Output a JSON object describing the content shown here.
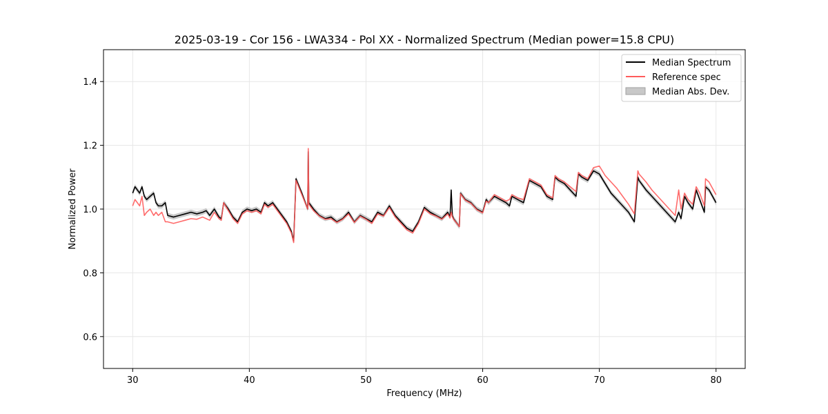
{
  "chart_data": {
    "type": "line",
    "title": "2025-03-19 - Cor 156 - LWA334 - Pol XX - Normalized Spectrum (Median power=15.8 CPU)",
    "xlabel": "Frequency (MHz)",
    "ylabel": "Normalized Power",
    "xlim": [
      27.5,
      82.5
    ],
    "ylim": [
      0.5,
      1.5
    ],
    "xticks": [
      30,
      40,
      50,
      60,
      70,
      80
    ],
    "yticks": [
      0.6,
      0.8,
      1.0,
      1.2,
      1.4
    ],
    "xtick_labels": [
      "30",
      "40",
      "50",
      "60",
      "70",
      "80"
    ],
    "ytick_labels": [
      "0.6",
      "0.8",
      "1.0",
      "1.2",
      "1.4"
    ],
    "grid": true,
    "legend_position": "top-right",
    "legend": [
      "Median Spectrum",
      "Reference spec",
      "Median Abs. Dev."
    ],
    "mad": 0.008,
    "series": [
      {
        "name": "Median Spectrum",
        "color": "#000000",
        "x": [
          30.0,
          30.2,
          30.4,
          30.6,
          30.8,
          31.0,
          31.2,
          31.5,
          31.8,
          32.0,
          32.2,
          32.5,
          32.8,
          33.0,
          33.5,
          34.0,
          34.5,
          35.0,
          35.5,
          36.0,
          36.3,
          36.6,
          37.0,
          37.4,
          37.6,
          37.8,
          38.2,
          38.6,
          39.0,
          39.4,
          39.8,
          40.2,
          40.6,
          41.0,
          41.3,
          41.6,
          42.0,
          42.4,
          42.8,
          43.2,
          43.6,
          43.8,
          44.0,
          44.5,
          45.0,
          45.05,
          45.1,
          45.5,
          46.0,
          46.5,
          47.0,
          47.5,
          48.0,
          48.5,
          49.0,
          49.5,
          50.0,
          50.5,
          51.0,
          51.5,
          52.0,
          52.5,
          53.0,
          53.5,
          54.0,
          54.5,
          55.0,
          55.5,
          56.0,
          56.5,
          57.0,
          57.2,
          57.3,
          57.4,
          57.5,
          58.0,
          58.1,
          58.5,
          59.0,
          59.5,
          60.0,
          60.3,
          60.5,
          61.0,
          61.5,
          62.0,
          62.3,
          62.5,
          63.0,
          63.5,
          64.0,
          64.5,
          65.0,
          65.5,
          66.0,
          66.2,
          66.5,
          67.0,
          67.5,
          68.0,
          68.2,
          68.5,
          69.0,
          69.5,
          70.0,
          70.5,
          71.0,
          71.5,
          72.0,
          72.5,
          73.0,
          73.3,
          73.4,
          74.0,
          74.5,
          75.0,
          75.5,
          76.0,
          76.5,
          76.8,
          77.0,
          77.3,
          77.6,
          78.0,
          78.3,
          78.6,
          79.0,
          79.1,
          79.4,
          79.7,
          80.0
        ],
        "values": [
          1.05,
          1.07,
          1.06,
          1.05,
          1.07,
          1.04,
          1.03,
          1.04,
          1.05,
          1.02,
          1.01,
          1.01,
          1.02,
          0.98,
          0.975,
          0.98,
          0.985,
          0.99,
          0.985,
          0.99,
          0.995,
          0.98,
          1.0,
          0.975,
          0.97,
          1.02,
          1.0,
          0.975,
          0.96,
          0.99,
          1.0,
          0.995,
          1.0,
          0.99,
          1.02,
          1.01,
          1.02,
          1.0,
          0.98,
          0.96,
          0.93,
          0.9,
          1.095,
          1.05,
          1.0,
          1.18,
          1.02,
          1.0,
          0.98,
          0.97,
          0.975,
          0.96,
          0.97,
          0.99,
          0.96,
          0.98,
          0.97,
          0.96,
          0.99,
          0.98,
          1.01,
          0.98,
          0.96,
          0.94,
          0.93,
          0.96,
          1.005,
          0.99,
          0.98,
          0.97,
          0.99,
          0.975,
          1.06,
          0.98,
          0.97,
          0.945,
          1.05,
          1.03,
          1.02,
          1.0,
          0.99,
          1.03,
          1.02,
          1.04,
          1.03,
          1.02,
          1.01,
          1.04,
          1.03,
          1.02,
          1.09,
          1.08,
          1.07,
          1.04,
          1.03,
          1.1,
          1.09,
          1.08,
          1.06,
          1.04,
          1.11,
          1.1,
          1.09,
          1.12,
          1.11,
          1.08,
          1.05,
          1.03,
          1.01,
          0.99,
          0.96,
          1.1,
          1.09,
          1.06,
          1.04,
          1.02,
          1.0,
          0.98,
          0.96,
          0.99,
          0.97,
          1.04,
          1.02,
          1.0,
          1.06,
          1.03,
          0.99,
          1.07,
          1.06,
          1.04,
          1.02
        ]
      },
      {
        "name": "Reference spec",
        "color": "#ff5b5b",
        "x": [
          30.0,
          30.2,
          30.4,
          30.6,
          30.8,
          31.0,
          31.2,
          31.5,
          31.8,
          32.0,
          32.2,
          32.5,
          32.8,
          33.0,
          33.5,
          34.0,
          34.5,
          35.0,
          35.5,
          36.0,
          36.3,
          36.6,
          37.0,
          37.4,
          37.6,
          37.8,
          38.2,
          38.6,
          39.0,
          39.4,
          39.8,
          40.2,
          40.6,
          41.0,
          41.3,
          41.6,
          42.0,
          42.4,
          42.8,
          43.2,
          43.6,
          43.8,
          44.0,
          44.5,
          45.0,
          45.05,
          45.1,
          45.5,
          46.0,
          46.5,
          47.0,
          47.5,
          48.0,
          48.5,
          49.0,
          49.5,
          50.0,
          50.5,
          51.0,
          51.5,
          52.0,
          52.5,
          53.0,
          53.5,
          54.0,
          54.5,
          55.0,
          55.5,
          56.0,
          56.5,
          57.0,
          57.2,
          57.3,
          57.4,
          57.5,
          58.0,
          58.1,
          58.5,
          59.0,
          59.5,
          60.0,
          60.3,
          60.5,
          61.0,
          61.5,
          62.0,
          62.3,
          62.5,
          63.0,
          63.5,
          64.0,
          64.5,
          65.0,
          65.5,
          66.0,
          66.2,
          66.5,
          67.0,
          67.5,
          68.0,
          68.2,
          68.5,
          69.0,
          69.5,
          70.0,
          70.5,
          71.0,
          71.5,
          72.0,
          72.5,
          73.0,
          73.3,
          73.4,
          74.0,
          74.5,
          75.0,
          75.5,
          76.0,
          76.5,
          76.8,
          77.0,
          77.3,
          77.6,
          78.0,
          78.3,
          78.6,
          79.0,
          79.1,
          79.4,
          79.7,
          80.0
        ],
        "values": [
          1.01,
          1.03,
          1.02,
          1.01,
          1.04,
          0.98,
          0.99,
          1.0,
          0.98,
          0.99,
          0.98,
          0.99,
          0.96,
          0.96,
          0.955,
          0.96,
          0.965,
          0.97,
          0.968,
          0.975,
          0.97,
          0.965,
          0.99,
          0.97,
          0.965,
          1.02,
          0.995,
          0.97,
          0.955,
          0.985,
          0.995,
          0.99,
          0.995,
          0.985,
          1.015,
          1.005,
          1.015,
          0.995,
          0.975,
          0.955,
          0.925,
          0.895,
          1.09,
          1.045,
          1.0,
          1.19,
          1.015,
          0.995,
          0.978,
          0.968,
          0.97,
          0.958,
          0.968,
          0.985,
          0.958,
          0.978,
          0.968,
          0.955,
          0.985,
          0.978,
          1.005,
          0.975,
          0.955,
          0.935,
          0.925,
          0.955,
          1.0,
          0.985,
          0.978,
          0.968,
          0.985,
          0.972,
          0.99,
          0.975,
          0.968,
          0.945,
          1.048,
          1.028,
          1.018,
          0.998,
          0.988,
          1.025,
          1.02,
          1.045,
          1.035,
          1.025,
          1.03,
          1.045,
          1.035,
          1.03,
          1.095,
          1.085,
          1.075,
          1.045,
          1.035,
          1.105,
          1.095,
          1.085,
          1.07,
          1.055,
          1.115,
          1.105,
          1.095,
          1.13,
          1.135,
          1.105,
          1.085,
          1.065,
          1.04,
          1.015,
          0.985,
          1.12,
          1.11,
          1.085,
          1.06,
          1.04,
          1.02,
          1.0,
          0.98,
          1.06,
          1.0,
          1.05,
          1.03,
          1.015,
          1.07,
          1.05,
          1.01,
          1.095,
          1.085,
          1.065,
          1.045
        ]
      }
    ]
  }
}
